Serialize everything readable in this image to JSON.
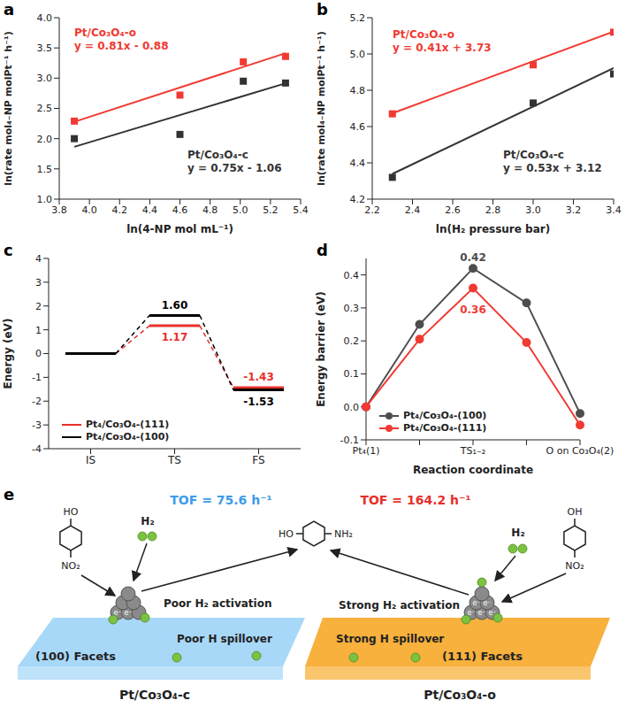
{
  "chart_data": [
    {
      "panel": "a",
      "type": "scatter",
      "x_label": "ln(4-NP mol mL⁻¹)",
      "y_label": "ln(rate mol₄₋NP molPt⁻¹ h⁻¹)",
      "xlim": [
        3.8,
        5.4
      ],
      "xticks": [
        3.8,
        {
          "value": 4,
          "label": "4.0"
        },
        4.2,
        4.4,
        4.6,
        4.8,
        {
          "value": 5,
          "label": "5.0"
        },
        5.2,
        5.4
      ],
      "ylim": [
        1,
        4
      ],
      "yticks": [
        {
          "value": 1,
          "label": "1.0"
        },
        1.5,
        {
          "value": 2,
          "label": "2.0"
        },
        2.5,
        {
          "value": 3,
          "label": "3.0"
        },
        3.5,
        {
          "value": 4,
          "label": "4.0"
        }
      ],
      "series": [
        {
          "name": "Pt/Co₃O₄-o",
          "color": "#f03a32",
          "marker": "square",
          "x": [
            3.9,
            4.6,
            5.02,
            5.3
          ],
          "values": [
            2.29,
            2.72,
            3.27,
            3.36
          ],
          "fit_x": [
            3.9,
            5.3
          ],
          "fit_values": [
            2.279,
            3.413
          ],
          "equation": "y = 0.81x - 0.88"
        },
        {
          "name": "Pt/Co₃O₄-c",
          "color": "#333333",
          "marker": "square",
          "x": [
            3.9,
            4.6,
            5.02,
            5.3
          ],
          "values": [
            2.0,
            2.07,
            2.95,
            2.92
          ],
          "fit_x": [
            3.9,
            5.3
          ],
          "fit_values": [
            1.865,
            2.915
          ],
          "equation": "y = 0.75x - 1.06"
        }
      ]
    },
    {
      "panel": "b",
      "type": "scatter",
      "x_label": "ln(H₂ pressure bar)",
      "y_label": "ln(rate mol₄₋NP molPt⁻¹ h⁻¹)",
      "xlim": [
        2.2,
        3.4
      ],
      "xticks": [
        2.2,
        2.4,
        2.6,
        2.8,
        {
          "value": 3,
          "label": "3.0"
        },
        3.2,
        3.4
      ],
      "ylim": [
        4.2,
        5.2
      ],
      "yticks": [
        4.2,
        4.4,
        4.6,
        4.8,
        {
          "value": 5,
          "label": "5.0"
        },
        5.2
      ],
      "series": [
        {
          "name": "Pt/Co₃O₄-o",
          "color": "#f03a32",
          "marker": "square",
          "x": [
            2.3,
            3.0,
            3.4
          ],
          "values": [
            4.67,
            4.94,
            5.12
          ],
          "fit_x": [
            2.3,
            3.4
          ],
          "fit_values": [
            4.673,
            5.124
          ],
          "equation": "y = 0.41x + 3.73"
        },
        {
          "name": "Pt/Co₃O₄-c",
          "color": "#333333",
          "marker": "square",
          "x": [
            2.3,
            3.0,
            3.4
          ],
          "values": [
            4.32,
            4.73,
            4.89
          ],
          "fit_x": [
            2.3,
            3.4
          ],
          "fit_values": [
            4.339,
            4.922
          ],
          "equation": "y = 0.53x + 3.12"
        }
      ]
    },
    {
      "panel": "c",
      "type": "energy_profile",
      "y_label": "Energy (eV)",
      "categories": [
        "IS",
        "TS",
        "FS"
      ],
      "ylim": [
        -4,
        4
      ],
      "yticks": [
        -4,
        -3,
        -2,
        -1,
        0,
        1,
        2,
        3,
        4
      ],
      "legend": "lower left",
      "data_labels": true,
      "series": [
        {
          "name": "Pt₄/Co₃O₄-(111)",
          "color": "#e8302a",
          "values": [
            0,
            1.17,
            -1.43
          ],
          "value_labels": [
            null,
            "1.17",
            "-1.43"
          ]
        },
        {
          "name": "Pt₄/Co₃O₄-(100)",
          "color": "#000000",
          "values": [
            0,
            1.6,
            -1.53
          ],
          "value_labels": [
            null,
            "1.60",
            "-1.53"
          ]
        }
      ]
    },
    {
      "panel": "d",
      "type": "line",
      "x_label": "Reaction coordinate",
      "y_label": "Energy barrier (eV)",
      "categories": [
        "Pt₄(1)",
        null,
        "TS₁₋₂",
        null,
        "O on Co₃O₄(2)"
      ],
      "ylim": [
        -0.1,
        0.45
      ],
      "yticks": [
        -0.1,
        {
          "value": 0,
          "label": "0.0"
        },
        0.1,
        0.2,
        0.3,
        0.4
      ],
      "legend": "lower left",
      "data_labels": true,
      "series": [
        {
          "name": "Pt₄/Co₃O₄-(100)",
          "color": "#4d4d4d",
          "marker": "circle",
          "values": [
            0,
            0.25,
            0.42,
            0.315,
            -0.02
          ],
          "value_labels": [
            null,
            null,
            "0.42",
            null,
            null
          ]
        },
        {
          "name": "Pt₄/Co₃O₄-(111)",
          "color": "#f03a32",
          "marker": "circle",
          "values": [
            0,
            0.205,
            0.36,
            0.195,
            -0.055
          ],
          "value_labels": [
            null,
            null,
            "0.36",
            null,
            null
          ]
        }
      ]
    }
  ],
  "panel_e": {
    "panel": "e",
    "electron": "e⁻",
    "product": {
      "left_group": "HO",
      "right_group": "NH₂"
    },
    "left": {
      "tof": "TOF = 75.6 h⁻¹",
      "tof_color": "#3d9be9",
      "gas": "H₂",
      "activation": "Poor H₂ activation",
      "spillover": "Poor H spillover",
      "facet": "(100) Facets",
      "catalyst": "Pt/Co₃O₄-c",
      "reactant": {
        "top_group": "HO",
        "bottom_group": "NO₂"
      },
      "slab_color": "#a8d8f8"
    },
    "right": {
      "tof": "TOF = 164.2 h⁻¹",
      "tof_color": "#e8302a",
      "gas": "H₂",
      "activation": "Strong H₂ activation",
      "spillover": "Strong H spillover",
      "facet": "(111) Facets",
      "catalyst": "Pt/Co₃O₄-o",
      "reactant": {
        "top_group": "OH",
        "bottom_group": "NO₂"
      },
      "slab_color": "#f7b13c"
    }
  }
}
